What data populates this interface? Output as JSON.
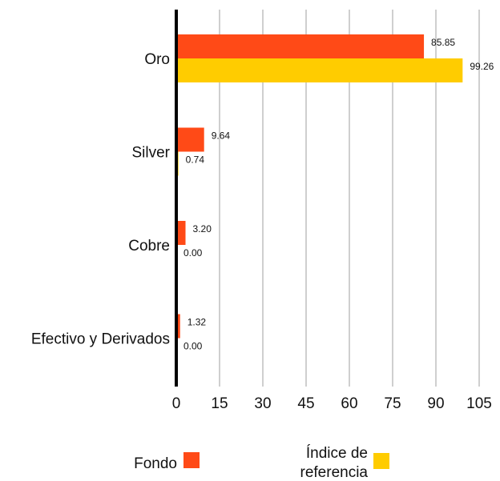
{
  "chart_data": {
    "type": "bar",
    "orientation": "horizontal",
    "categories": [
      "Oro",
      "Silver",
      "Cobre",
      "Efectivo y Derivados"
    ],
    "series": [
      {
        "name": "Fondo",
        "values": [
          85.85,
          9.64,
          3.2,
          1.32
        ],
        "labels": [
          "85.85",
          "9.64",
          "3.20",
          "1.32"
        ],
        "color": "#ff4a17"
      },
      {
        "name": "Índice de referencia",
        "values": [
          99.26,
          0.74,
          0.0,
          0.0
        ],
        "labels": [
          "99.26",
          "0.74",
          "0.00",
          "0.00"
        ],
        "color": "#ffcc00"
      }
    ],
    "xlim": [
      0,
      105
    ],
    "xticks": [
      "0",
      "15",
      "30",
      "45",
      "60",
      "75",
      "90",
      "105"
    ],
    "grid": true,
    "legend_position": "bottom",
    "legend": [
      {
        "series": 0,
        "lines": [
          "Fondo"
        ]
      },
      {
        "series": 1,
        "lines": [
          "Índice de",
          "referencia"
        ]
      }
    ]
  }
}
